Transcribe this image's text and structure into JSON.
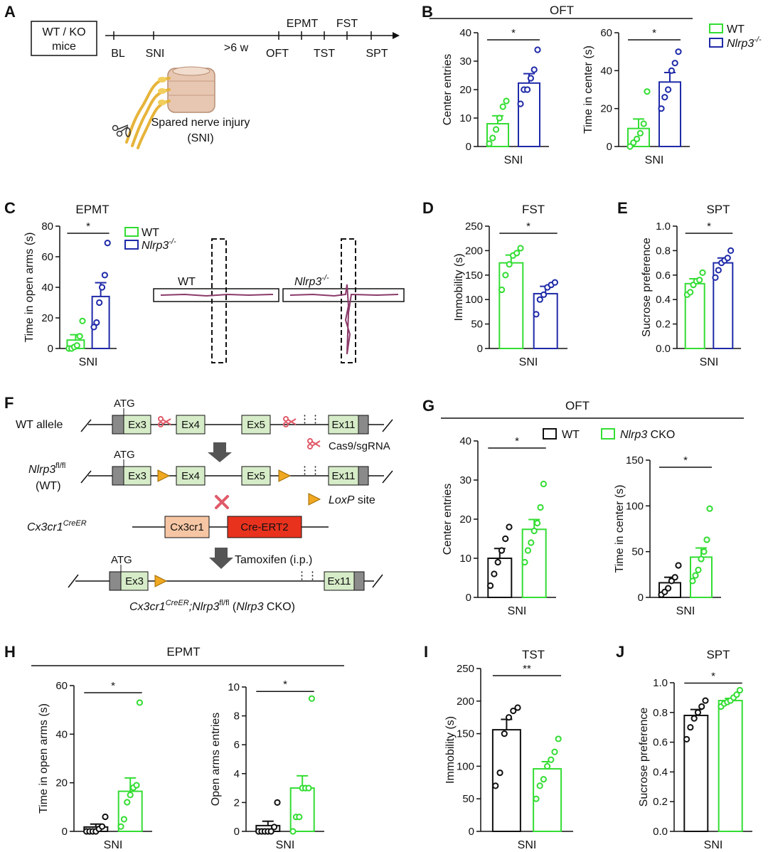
{
  "colors": {
    "wt": "#33dd33",
    "ko": "#1f2aa8",
    "cko_wt": "#111111",
    "cko": "#33dd33",
    "box_fill": "#d6ecc8",
    "cre": "#e8321e",
    "cx3cr1": "#f6c6a4",
    "gray": "#8a8a8a",
    "scissor": "#e05a6a",
    "arrow": "#555555"
  },
  "panelA": {
    "label": "A",
    "mice_line1": "WT / KO",
    "mice_line2": "mice",
    "tl_bl": "BL",
    "tl_sni": "SNI",
    "tl_gt6": ">6 w",
    "tl_oft": "OFT",
    "tl_epmt": "EPMT",
    "tl_tst": "TST",
    "tl_fst": "FST",
    "tl_spt": "SPT",
    "sni_line1": "Spared nerve injury",
    "sni_line2": "(SNI)"
  },
  "panelB": {
    "label": "B",
    "group_title": "OFT",
    "legend_wt": "WT",
    "legend_ko": "Nlrp3",
    "legend_ko_sup": "-/-"
  },
  "panelC": {
    "label": "C",
    "legend_wt": "WT",
    "legend_ko": "Nlrp3",
    "legend_ko_sup": "-/-",
    "track_wt": "WT",
    "track_ko": "Nlrp3",
    "track_ko_sup": "-/-"
  },
  "panelD": {
    "label": "D"
  },
  "panelE": {
    "label": "E"
  },
  "panelF": {
    "label": "F",
    "wt_allele": "WT allele",
    "atg": "ATG",
    "ex3": "Ex3",
    "ex4": "Ex4",
    "ex5": "Ex5",
    "ex11": "Ex11",
    "cas9": "Cas9/sgRNA",
    "nlrp3": "Nlrp3",
    "nlrp3_sup": "fl/fl",
    "wt_paren": "(WT)",
    "loxp": "LoxP",
    "loxp_site": " site",
    "cx3cr1": "Cx3cr1",
    "cx3cr1_sup": "CreER",
    "cx3cr1_box": "Cx3cr1",
    "cre_box": "Cre-ERT2",
    "tamoxifen": "Tamoxifen  (i.p.)",
    "final_a": "Cx3cr1",
    "final_sup1": "CreER",
    "final_b": ";Nlrp3",
    "final_sup2": "fl/fl",
    "final_c": " (",
    "final_d": "Nlrp3",
    "final_e": " CKO)"
  },
  "panelG": {
    "label": "G",
    "group_title": "OFT",
    "legend_wt": "WT",
    "legend_cko_a": "Nlrp3",
    "legend_cko_b": " CKO"
  },
  "panelH": {
    "label": "H",
    "group_title": "EPMT"
  },
  "panelI": {
    "label": "I"
  },
  "panelJ": {
    "label": "J"
  },
  "chart_data": [
    {
      "id": "B1",
      "type": "bar",
      "title": "",
      "xlabel": "SNI",
      "ylabel": "Center entries",
      "ylim": [
        0,
        40
      ],
      "yticks": [
        0,
        10,
        20,
        30,
        40
      ],
      "sig": "*",
      "series": [
        {
          "name": "WT",
          "mean": 8,
          "sem": 2.8,
          "points": [
            1,
            3,
            6,
            10,
            14,
            16
          ]
        },
        {
          "name": "Nlrp3-/-",
          "mean": 22.3,
          "sem": 3.3,
          "points": [
            15,
            20,
            20,
            24,
            27,
            34
          ]
        }
      ]
    },
    {
      "id": "B2",
      "type": "bar",
      "title": "",
      "xlabel": "SNI",
      "ylabel": "Time in center (s)",
      "ylim": [
        0,
        60
      ],
      "yticks": [
        0,
        20,
        40,
        60
      ],
      "sig": "*",
      "series": [
        {
          "name": "WT",
          "mean": 9.5,
          "sem": 5,
          "points": [
            0,
            2,
            4,
            7,
            12,
            29
          ]
        },
        {
          "name": "Nlrp3-/-",
          "mean": 34,
          "sem": 5,
          "points": [
            20,
            26,
            30,
            40,
            44,
            50
          ]
        }
      ]
    },
    {
      "id": "C",
      "type": "bar",
      "title": "EPMT",
      "xlabel": "SNI",
      "ylabel": "Time in open arms (s)",
      "ylim": [
        0,
        80
      ],
      "yticks": [
        0,
        20,
        40,
        60,
        80
      ],
      "sig": "*",
      "series": [
        {
          "name": "WT",
          "mean": 5.5,
          "sem": 3.5,
          "points": [
            0,
            0,
            1,
            2,
            8,
            18
          ]
        },
        {
          "name": "Nlrp3-/-",
          "mean": 34,
          "sem": 9,
          "points": [
            14,
            17,
            30,
            40,
            48,
            69
          ]
        }
      ]
    },
    {
      "id": "D",
      "type": "bar",
      "title": "FST",
      "xlabel": "SNI",
      "ylabel": "Immobility (s)",
      "ylim": [
        0,
        250
      ],
      "yticks": [
        0,
        50,
        100,
        150,
        200,
        250
      ],
      "sig": "*",
      "series": [
        {
          "name": "WT",
          "mean": 175,
          "sem": 16,
          "points": [
            120,
            150,
            172,
            190,
            195,
            205
          ]
        },
        {
          "name": "Nlrp3-/-",
          "mean": 112,
          "sem": 15,
          "points": [
            70,
            100,
            110,
            125,
            130,
            135
          ]
        }
      ]
    },
    {
      "id": "E",
      "type": "bar",
      "title": "SPT",
      "xlabel": "SNI",
      "ylabel": "Sucrose preference",
      "ylim": [
        0,
        1
      ],
      "yticks": [
        "0.0",
        "0.2",
        "0.4",
        "0.6",
        "0.8",
        "1.0"
      ],
      "sig": "*",
      "series": [
        {
          "name": "WT",
          "mean": 0.53,
          "sem": 0.04,
          "points": [
            0.44,
            0.46,
            0.52,
            0.55,
            0.56,
            0.62
          ]
        },
        {
          "name": "Nlrp3-/-",
          "mean": 0.7,
          "sem": 0.04,
          "points": [
            0.58,
            0.64,
            0.7,
            0.72,
            0.74,
            0.8
          ]
        }
      ]
    },
    {
      "id": "G1",
      "type": "bar",
      "title": "",
      "xlabel": "SNI",
      "ylabel": "Center entries",
      "ylim": [
        0,
        40
      ],
      "yticks": [
        0,
        10,
        20,
        30,
        40
      ],
      "sig": "*",
      "series": [
        {
          "name": "WT",
          "mean": 10,
          "sem": 2.5,
          "points": [
            3,
            6,
            9,
            12,
            15,
            18
          ]
        },
        {
          "name": "Nlrp3 CKO",
          "mean": 17.4,
          "sem": 2.5,
          "points": [
            9,
            12,
            14,
            17,
            19,
            23,
            29
          ]
        }
      ]
    },
    {
      "id": "G2",
      "type": "bar",
      "title": "",
      "xlabel": "SNI",
      "ylabel": "Time in center (s)",
      "ylim": [
        0,
        150
      ],
      "yticks": [
        0,
        50,
        100,
        150
      ],
      "sig": "*",
      "series": [
        {
          "name": "WT",
          "mean": 16,
          "sem": 6,
          "points": [
            3,
            6,
            10,
            18,
            22,
            35
          ]
        },
        {
          "name": "Nlrp3 CKO",
          "mean": 44,
          "sem": 10,
          "points": [
            18,
            24,
            30,
            42,
            50,
            63,
            97
          ]
        }
      ]
    },
    {
      "id": "H1",
      "type": "bar",
      "title": "",
      "xlabel": "SNI",
      "ylabel": "Time in open arms (s)",
      "ylim": [
        0,
        60
      ],
      "yticks": [
        0,
        20,
        40,
        60
      ],
      "sig": "*",
      "series": [
        {
          "name": "WT",
          "mean": 1.8,
          "sem": 1.2,
          "points": [
            0,
            0,
            0,
            0,
            1,
            2,
            6
          ]
        },
        {
          "name": "Nlrp3 CKO",
          "mean": 16.5,
          "sem": 5.5,
          "points": [
            2,
            5,
            12,
            15,
            18,
            19,
            53
          ]
        }
      ]
    },
    {
      "id": "H2",
      "type": "bar",
      "title": "",
      "xlabel": "SNI",
      "ylabel": "Open arms entries",
      "ylim": [
        0,
        10
      ],
      "yticks": [
        0,
        2,
        4,
        6,
        8,
        10
      ],
      "sig": "*",
      "series": [
        {
          "name": "WT",
          "mean": 0.4,
          "sem": 0.3,
          "points": [
            0,
            0,
            0,
            0,
            0,
            0.3,
            2
          ]
        },
        {
          "name": "Nlrp3 CKO",
          "mean": 3,
          "sem": 0.85,
          "points": [
            0,
            1,
            1,
            3,
            3,
            3,
            9.2
          ]
        }
      ]
    },
    {
      "id": "I",
      "type": "bar",
      "title": "TST",
      "xlabel": "SNI",
      "ylabel": "Immobility (s)",
      "ylim": [
        0,
        250
      ],
      "yticks": [
        0,
        50,
        100,
        150,
        200,
        250
      ],
      "sig": "**",
      "series": [
        {
          "name": "WT",
          "mean": 156,
          "sem": 16,
          "points": [
            70,
            90,
            150,
            175,
            185,
            190
          ]
        },
        {
          "name": "Nlrp3 CKO",
          "mean": 96,
          "sem": 11,
          "points": [
            50,
            70,
            80,
            100,
            110,
            122,
            142
          ]
        }
      ]
    },
    {
      "id": "J",
      "type": "bar",
      "title": "SPT",
      "xlabel": "SNI",
      "ylabel": "Sucrose preference",
      "ylim": [
        0,
        1
      ],
      "yticks": [
        "0.0",
        "0.2",
        "0.4",
        "0.6",
        "0.8",
        "1.0"
      ],
      "sig": "*",
      "series": [
        {
          "name": "WT",
          "mean": 0.78,
          "sem": 0.04,
          "points": [
            0.62,
            0.7,
            0.76,
            0.8,
            0.84,
            0.88
          ]
        },
        {
          "name": "Nlrp3 CKO",
          "mean": 0.88,
          "sem": 0.015,
          "points": [
            0.84,
            0.86,
            0.87,
            0.88,
            0.9,
            0.92,
            0.95
          ]
        }
      ]
    }
  ]
}
